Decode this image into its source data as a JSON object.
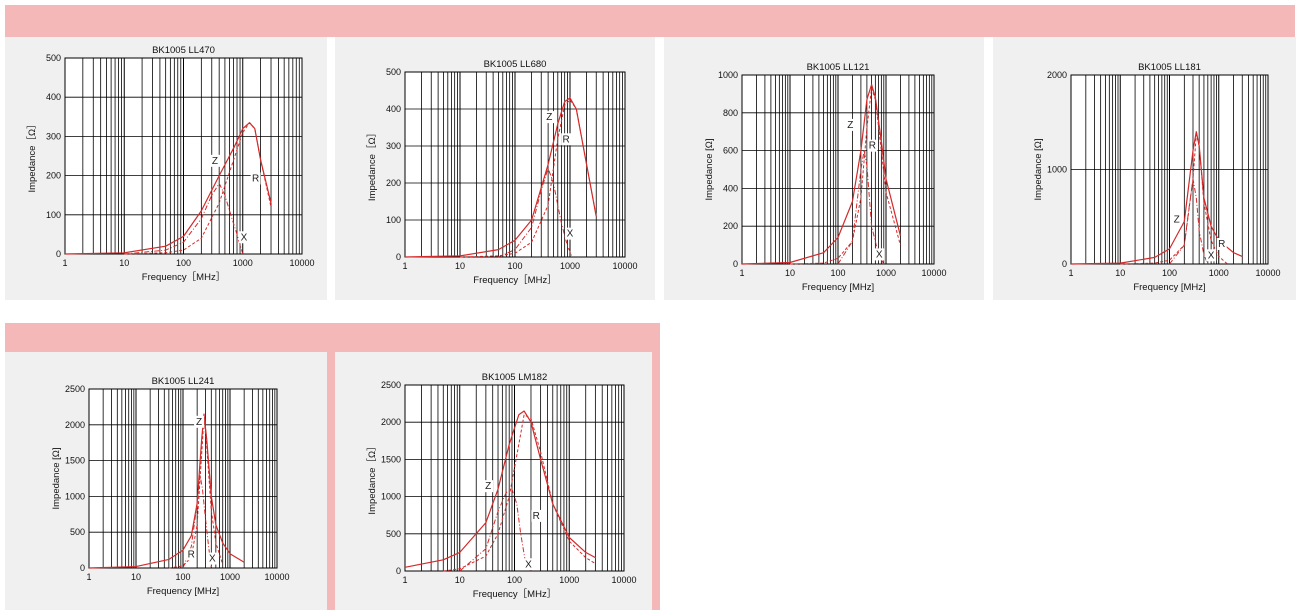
{
  "colors": {
    "band": "#f5b8b9",
    "panel": "#f0f0f0",
    "grid": "#000000",
    "curve": "#d42a2a"
  },
  "axis_labels": {
    "x": "Frequency［MHz］",
    "y": "Impedance［Ω］"
  },
  "chart_data": [
    {
      "type": "line",
      "title": "BK1005  LL470",
      "xscale": "log",
      "xlim": [
        1,
        10000
      ],
      "ylim": [
        0,
        500
      ],
      "yticks": [
        0,
        100,
        200,
        300,
        400,
        500
      ],
      "xticks": [
        1,
        10,
        100,
        1000,
        10000
      ],
      "xlabel": "Frequency［MHz］",
      "ylabel": "Impedance［Ω］",
      "series": [
        {
          "name": "Z",
          "style": "solid",
          "x": [
            1,
            10,
            50,
            100,
            200,
            400,
            700,
            1000,
            1300,
            1600,
            2000,
            3000
          ],
          "y": [
            0,
            3,
            20,
            45,
            110,
            200,
            270,
            320,
            335,
            320,
            240,
            130
          ]
        },
        {
          "name": "R",
          "style": "dash",
          "x": [
            10,
            50,
            100,
            200,
            400,
            700,
            1000,
            1300,
            1600,
            2000,
            3000
          ],
          "y": [
            0,
            3,
            10,
            40,
            130,
            240,
            310,
            335,
            320,
            240,
            120
          ]
        },
        {
          "name": "X",
          "style": "dashdot",
          "x": [
            10,
            50,
            100,
            200,
            300,
            400,
            500,
            600,
            800,
            1000
          ],
          "y": [
            0,
            10,
            30,
            90,
            150,
            180,
            150,
            110,
            50,
            0
          ]
        }
      ],
      "annotations": [
        {
          "text": "Z",
          "x": 340,
          "y": 230
        },
        {
          "text": "R",
          "x": 1650,
          "y": 185
        },
        {
          "text": "X",
          "x": 1050,
          "y": 35
        }
      ]
    },
    {
      "type": "line",
      "title": "BK1005  LL680",
      "xscale": "log",
      "xlim": [
        1,
        10000
      ],
      "ylim": [
        0,
        500
      ],
      "yticks": [
        0,
        100,
        200,
        300,
        400,
        500
      ],
      "xticks": [
        1,
        10,
        100,
        1000,
        10000
      ],
      "xlabel": "Frequency［MHz］",
      "ylabel": "Impedance［Ω］",
      "series": [
        {
          "name": "Z",
          "style": "solid",
          "x": [
            1,
            10,
            50,
            100,
            200,
            400,
            600,
            800,
            1000,
            1300,
            2000,
            3000
          ],
          "y": [
            0,
            3,
            20,
            45,
            100,
            250,
            360,
            420,
            430,
            400,
            250,
            110
          ]
        },
        {
          "name": "R",
          "style": "dash",
          "x": [
            10,
            50,
            100,
            200,
            400,
            600,
            800,
            1000,
            1300,
            2000,
            3000
          ],
          "y": [
            0,
            3,
            10,
            40,
            140,
            320,
            410,
            425,
            400,
            250,
            110
          ]
        },
        {
          "name": "X",
          "style": "dashdot",
          "x": [
            50,
            100,
            200,
            300,
            400,
            500,
            600,
            700,
            900,
            1100
          ],
          "y": [
            0,
            20,
            80,
            180,
            240,
            200,
            140,
            90,
            30,
            0
          ]
        }
      ],
      "annotations": [
        {
          "text": "Z",
          "x": 420,
          "y": 370
        },
        {
          "text": "R",
          "x": 850,
          "y": 310
        },
        {
          "text": "X",
          "x": 1000,
          "y": 55
        }
      ]
    },
    {
      "type": "line",
      "title": "BK1005 LL121",
      "xscale": "log",
      "xlim": [
        1,
        10000
      ],
      "ylim": [
        0,
        1000
      ],
      "yticks": [
        0,
        200,
        400,
        600,
        800,
        1000
      ],
      "xticks": [
        1,
        10,
        100,
        1000,
        10000
      ],
      "xlabel": "Frequency [MHz]",
      "ylabel": "Impedance [Ω]",
      "series": [
        {
          "name": "Z",
          "style": "solid",
          "x": [
            1,
            10,
            50,
            100,
            200,
            300,
            400,
            500,
            600,
            800,
            1000,
            2000
          ],
          "y": [
            0,
            8,
            60,
            140,
            330,
            600,
            870,
            950,
            880,
            650,
            450,
            150
          ]
        },
        {
          "name": "R",
          "style": "dash",
          "x": [
            10,
            50,
            100,
            200,
            300,
            400,
            500,
            600,
            800,
            1000,
            2000
          ],
          "y": [
            0,
            5,
            30,
            120,
            350,
            720,
            930,
            870,
            600,
            380,
            100
          ]
        },
        {
          "name": "X",
          "style": "dashdot",
          "x": [
            100,
            200,
            300,
            350,
            400,
            450,
            500,
            700,
            900
          ],
          "y": [
            0,
            120,
            500,
            600,
            520,
            350,
            200,
            50,
            0
          ]
        }
      ],
      "annotations": [
        {
          "text": "Z",
          "x": 180,
          "y": 720
        },
        {
          "text": "R",
          "x": 520,
          "y": 610
        },
        {
          "text": "X",
          "x": 720,
          "y": 35
        }
      ]
    },
    {
      "type": "line",
      "title": "BK1005 LL181",
      "xscale": "log",
      "xlim": [
        1,
        10000
      ],
      "ylim": [
        0,
        2000
      ],
      "yticks": [
        0,
        1000,
        2000
      ],
      "xticks": [
        1,
        10,
        100,
        1000,
        10000
      ],
      "xlabel": "Frequency [MHz]",
      "ylabel": "Impedance [Ω]",
      "series": [
        {
          "name": "Z",
          "style": "solid",
          "x": [
            1,
            10,
            50,
            100,
            200,
            300,
            350,
            400,
            500,
            700,
            1000,
            2000,
            3000
          ],
          "y": [
            0,
            10,
            70,
            160,
            450,
            1200,
            1400,
            1250,
            700,
            400,
            250,
            120,
            80
          ]
        },
        {
          "name": "R",
          "style": "dash",
          "x": [
            10,
            50,
            100,
            200,
            300,
            350,
            400,
            500,
            700,
            1000,
            1500
          ],
          "y": [
            0,
            10,
            40,
            200,
            900,
            1370,
            1250,
            650,
            250,
            80,
            0
          ]
        },
        {
          "name": "X",
          "style": "dashdot",
          "x": [
            100,
            200,
            250,
            300,
            350,
            400,
            500,
            600
          ],
          "y": [
            0,
            200,
            600,
            900,
            700,
            350,
            100,
            0
          ]
        }
      ],
      "annotations": [
        {
          "text": "Z",
          "x": 140,
          "y": 440
        },
        {
          "text": "R",
          "x": 1150,
          "y": 180
        },
        {
          "text": "X",
          "x": 700,
          "y": 60
        }
      ]
    },
    {
      "type": "line",
      "title": "BK1005 LL241",
      "xscale": "log",
      "xlim": [
        1,
        10000
      ],
      "ylim": [
        0,
        2500
      ],
      "yticks": [
        0,
        500,
        1000,
        1500,
        2000,
        2500
      ],
      "xticks": [
        1,
        10,
        100,
        1000,
        10000
      ],
      "xlabel": "Frequency [MHz]",
      "ylabel": "Impedance [Ω]",
      "series": [
        {
          "name": "Z",
          "style": "solid",
          "x": [
            1,
            10,
            50,
            100,
            150,
            200,
            250,
            280,
            320,
            400,
            500,
            700,
            1000,
            2000
          ],
          "y": [
            0,
            20,
            120,
            250,
            450,
            900,
            1800,
            2150,
            1800,
            1000,
            600,
            350,
            200,
            80
          ]
        },
        {
          "name": "R",
          "style": "dash",
          "x": [
            50,
            100,
            150,
            200,
            250,
            280,
            320,
            400,
            500,
            700
          ],
          "y": [
            0,
            30,
            150,
            600,
            1600,
            2100,
            1700,
            800,
            350,
            50
          ]
        },
        {
          "name": "X",
          "style": "dashdot",
          "x": [
            100,
            150,
            200,
            230,
            260,
            300,
            350,
            400
          ],
          "y": [
            0,
            300,
            900,
            1300,
            1100,
            700,
            300,
            0
          ]
        }
      ],
      "annotations": [
        {
          "text": "Z",
          "x": 220,
          "y": 2000
        },
        {
          "text": "R",
          "x": 150,
          "y": 150
        },
        {
          "text": "X",
          "x": 420,
          "y": 90
        }
      ]
    },
    {
      "type": "line",
      "title": "BK1005  LM182",
      "xscale": "log",
      "xlim": [
        1,
        10000
      ],
      "ylim": [
        0,
        2500
      ],
      "yticks": [
        0,
        500,
        1000,
        1500,
        2000,
        2500
      ],
      "xticks": [
        1,
        10,
        100,
        1000,
        10000
      ],
      "xlabel": "Frequency［MHz］",
      "ylabel": "Impedance［Ω］",
      "series": [
        {
          "name": "Z",
          "style": "solid",
          "x": [
            1,
            5,
            10,
            30,
            50,
            80,
            120,
            150,
            200,
            300,
            500,
            1000,
            2000,
            3000
          ],
          "y": [
            50,
            150,
            250,
            650,
            1100,
            1700,
            2100,
            2150,
            2000,
            1500,
            900,
            450,
            250,
            180
          ]
        },
        {
          "name": "R",
          "style": "dash",
          "x": [
            5,
            10,
            30,
            50,
            80,
            120,
            150,
            200,
            300,
            500,
            1000,
            2000,
            3000
          ],
          "y": [
            0,
            30,
            200,
            500,
            1000,
            1700,
            2100,
            2050,
            1600,
            900,
            400,
            180,
            100
          ]
        },
        {
          "name": "X",
          "style": "dashdot",
          "x": [
            10,
            30,
            50,
            70,
            90,
            110,
            130,
            160,
            200
          ],
          "y": [
            0,
            300,
            800,
            1050,
            1100,
            900,
            500,
            100,
            0
          ]
        }
      ],
      "annotations": [
        {
          "text": "Z",
          "x": 33,
          "y": 1100
        },
        {
          "text": "R",
          "x": 250,
          "y": 700
        },
        {
          "text": "X",
          "x": 180,
          "y": 50
        }
      ]
    }
  ]
}
